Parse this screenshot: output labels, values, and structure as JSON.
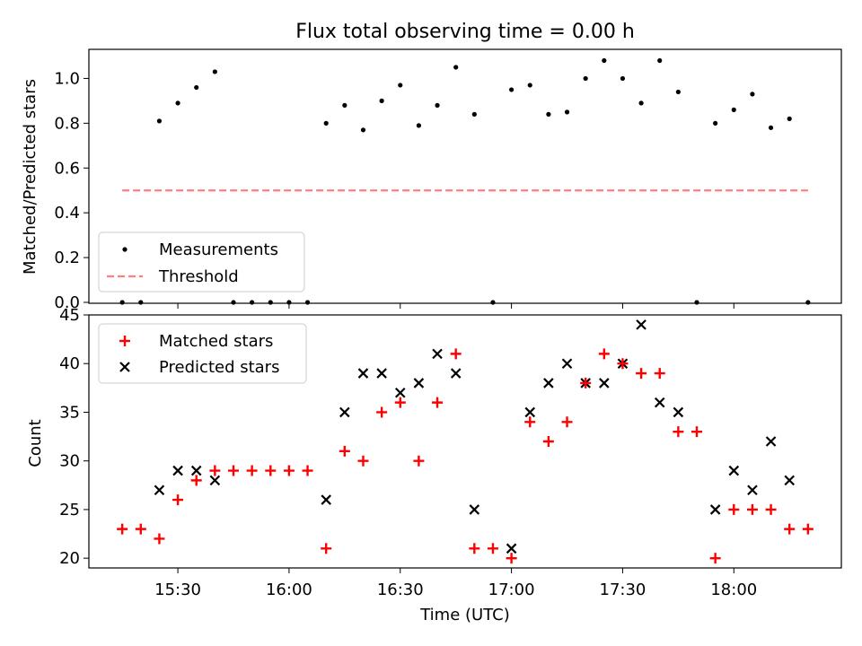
{
  "colors": {
    "measurement": "#000000",
    "threshold": "#ff7f7f",
    "matched": "#ff0000",
    "predicted": "#000000"
  },
  "chart_data": [
    {
      "type": "scatter",
      "title": "Flux total observing time = 0.00 h",
      "xlabel": "",
      "ylabel": "Matched/Predicted stars",
      "ylim": [
        0,
        1.13
      ],
      "yticks": [
        "0.0",
        "0.2",
        "0.4",
        "0.6",
        "0.8",
        "1.0"
      ],
      "legend_position": "lower-left",
      "series": [
        {
          "name": "Measurements",
          "marker": "dot",
          "points": [
            [
              "15:15",
              0
            ],
            [
              "15:20",
              0
            ],
            [
              "15:25",
              0.81
            ],
            [
              "15:30",
              0.89
            ],
            [
              "15:35",
              0.96
            ],
            [
              "15:40",
              1.03
            ],
            [
              "15:45",
              0
            ],
            [
              "15:50",
              0
            ],
            [
              "15:55",
              0
            ],
            [
              "16:00",
              0
            ],
            [
              "16:05",
              0
            ],
            [
              "16:10",
              0.8
            ],
            [
              "16:15",
              0.88
            ],
            [
              "16:20",
              0.77
            ],
            [
              "16:25",
              0.9
            ],
            [
              "16:30",
              0.97
            ],
            [
              "16:35",
              0.79
            ],
            [
              "16:40",
              0.88
            ],
            [
              "16:45",
              1.05
            ],
            [
              "16:50",
              0.84
            ],
            [
              "16:55",
              0
            ],
            [
              "17:00",
              0.95
            ],
            [
              "17:05",
              0.97
            ],
            [
              "17:10",
              0.84
            ],
            [
              "17:15",
              0.85
            ],
            [
              "17:20",
              1.0
            ],
            [
              "17:25",
              1.08
            ],
            [
              "17:30",
              1.0
            ],
            [
              "17:35",
              0.89
            ],
            [
              "17:40",
              1.08
            ],
            [
              "17:45",
              0.94
            ],
            [
              "17:50",
              0
            ],
            [
              "17:55",
              0.8
            ],
            [
              "18:00",
              0.86
            ],
            [
              "18:05",
              0.93
            ],
            [
              "18:10",
              0.78
            ],
            [
              "18:15",
              0.82
            ],
            [
              "18:20",
              0
            ]
          ]
        },
        {
          "name": "Threshold",
          "marker": "dashed-line",
          "points": [
            [
              "15:15",
              0.5
            ],
            [
              "18:20",
              0.5
            ]
          ]
        }
      ]
    },
    {
      "type": "scatter",
      "title": "",
      "xlabel": "Time (UTC)",
      "ylabel": "Count",
      "ylim": [
        19,
        45
      ],
      "yticks": [
        "20",
        "25",
        "30",
        "35",
        "40",
        "45"
      ],
      "xticks": [
        "15:30",
        "16:00",
        "16:30",
        "17:00",
        "17:30",
        "18:00"
      ],
      "xlim": [
        "15:06",
        "18:29"
      ],
      "legend_position": "upper-left",
      "series": [
        {
          "name": "Matched stars",
          "marker": "plus",
          "points": [
            [
              "15:15",
              23
            ],
            [
              "15:20",
              23
            ],
            [
              "15:25",
              22
            ],
            [
              "15:30",
              26
            ],
            [
              "15:35",
              28
            ],
            [
              "15:40",
              29
            ],
            [
              "15:45",
              29
            ],
            [
              "15:50",
              29
            ],
            [
              "15:55",
              29
            ],
            [
              "16:00",
              29
            ],
            [
              "16:05",
              29
            ],
            [
              "16:10",
              21
            ],
            [
              "16:15",
              31
            ],
            [
              "16:20",
              30
            ],
            [
              "16:25",
              35
            ],
            [
              "16:30",
              36
            ],
            [
              "16:35",
              30
            ],
            [
              "16:40",
              36
            ],
            [
              "16:45",
              41
            ],
            [
              "16:50",
              21
            ],
            [
              "16:55",
              21
            ],
            [
              "17:00",
              20
            ],
            [
              "17:05",
              34
            ],
            [
              "17:10",
              32
            ],
            [
              "17:15",
              34
            ],
            [
              "17:20",
              38
            ],
            [
              "17:25",
              41
            ],
            [
              "17:30",
              40
            ],
            [
              "17:35",
              39
            ],
            [
              "17:40",
              39
            ],
            [
              "17:45",
              33
            ],
            [
              "17:50",
              33
            ],
            [
              "17:55",
              20
            ],
            [
              "18:00",
              25
            ],
            [
              "18:05",
              25
            ],
            [
              "18:10",
              25
            ],
            [
              "18:15",
              23
            ],
            [
              "18:20",
              23
            ]
          ]
        },
        {
          "name": "Predicted stars",
          "marker": "x",
          "points": [
            [
              "15:25",
              27
            ],
            [
              "15:30",
              29
            ],
            [
              "15:35",
              29
            ],
            [
              "15:40",
              28
            ],
            [
              "16:10",
              26
            ],
            [
              "16:15",
              35
            ],
            [
              "16:20",
              39
            ],
            [
              "16:25",
              39
            ],
            [
              "16:30",
              37
            ],
            [
              "16:35",
              38
            ],
            [
              "16:40",
              41
            ],
            [
              "16:45",
              39
            ],
            [
              "16:50",
              25
            ],
            [
              "17:00",
              21
            ],
            [
              "17:05",
              35
            ],
            [
              "17:10",
              38
            ],
            [
              "17:15",
              40
            ],
            [
              "17:20",
              38
            ],
            [
              "17:25",
              38
            ],
            [
              "17:30",
              40
            ],
            [
              "17:35",
              44
            ],
            [
              "17:40",
              36
            ],
            [
              "17:45",
              35
            ],
            [
              "17:55",
              25
            ],
            [
              "18:00",
              29
            ],
            [
              "18:05",
              27
            ],
            [
              "18:10",
              32
            ],
            [
              "18:15",
              28
            ]
          ]
        }
      ]
    }
  ]
}
